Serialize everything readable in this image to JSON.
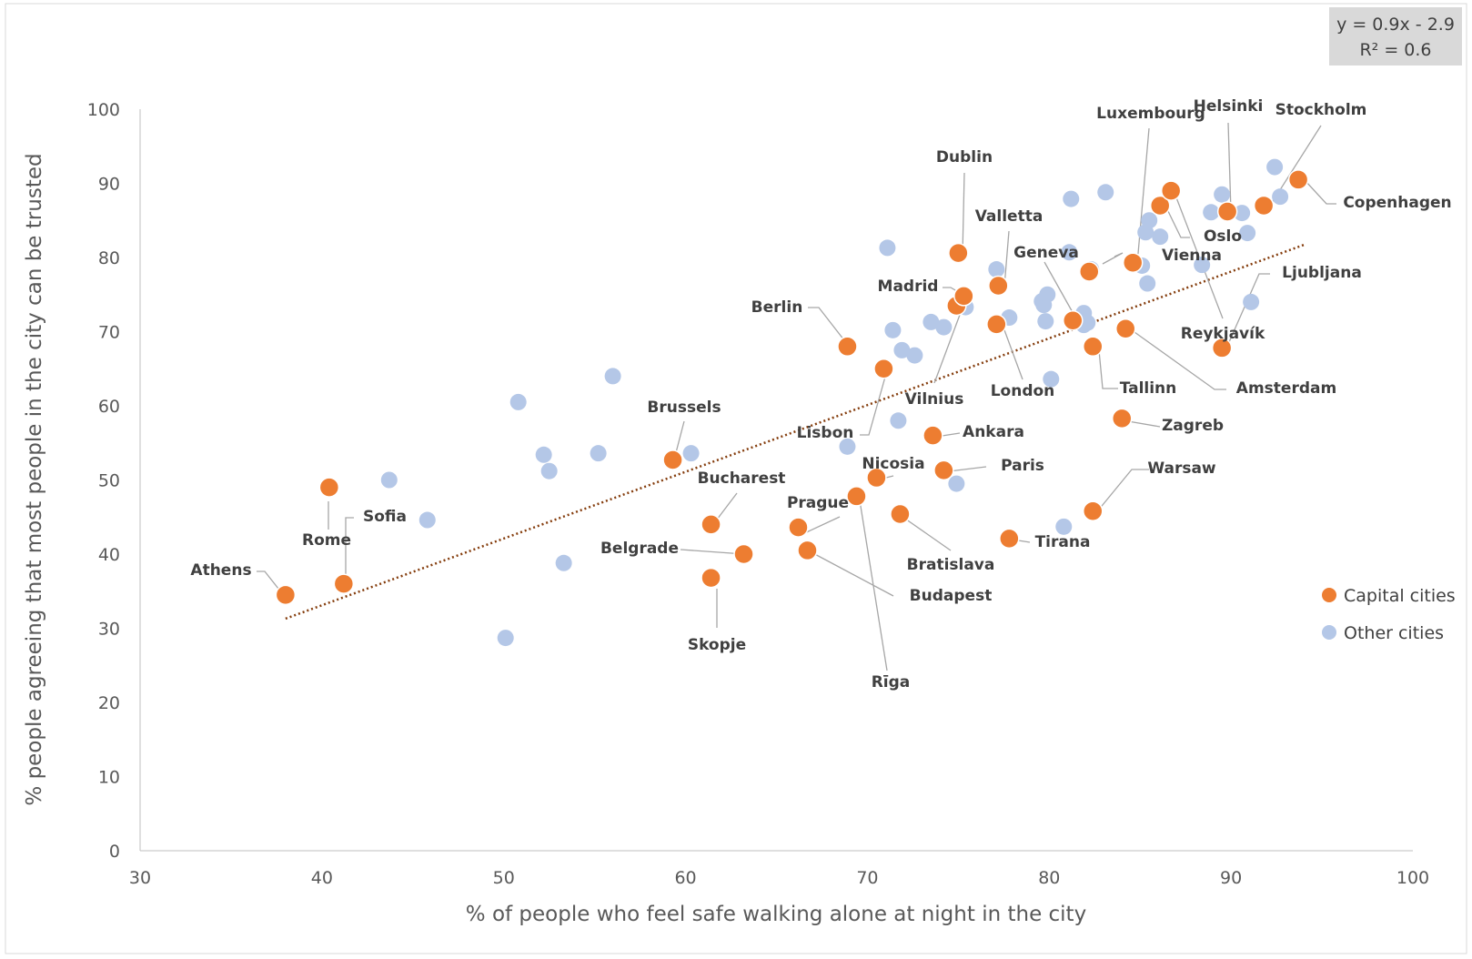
{
  "chart_data": {
    "type": "scatter",
    "xlabel": "% of people who feel safe walking alone at night in the city",
    "ylabel": "% people agreeing that most people in the city can be trusted",
    "xlim": [
      30,
      100
    ],
    "ylim": [
      0,
      100
    ],
    "x_ticks": [
      30,
      40,
      50,
      60,
      70,
      80,
      90,
      100
    ],
    "y_ticks": [
      0,
      10,
      20,
      30,
      40,
      50,
      60,
      70,
      80,
      90,
      100
    ],
    "grid": false,
    "legend_position": "right",
    "trendline": {
      "equation": "y = 0.9x - 2.9",
      "r_squared": "R² = 0.6",
      "slope": 0.9,
      "intercept": -2.9,
      "x_range": [
        38,
        94
      ],
      "color": "#843c0c"
    },
    "series": [
      {
        "name": "Capital cities",
        "color": "#ed7d31",
        "points": [
          {
            "label": "Athens",
            "x": 38,
            "y": 34.5
          },
          {
            "label": "Sofia",
            "x": 41.2,
            "y": 36
          },
          {
            "label": "Rome",
            "x": 40.4,
            "y": 49
          },
          {
            "label": "Brussels",
            "x": 59.3,
            "y": 52.7
          },
          {
            "label": "Bucharest",
            "x": 61.4,
            "y": 44
          },
          {
            "label": "Skopje",
            "x": 61.4,
            "y": 36.8
          },
          {
            "label": "Belgrade",
            "x": 63.2,
            "y": 40
          },
          {
            "label": "Prague",
            "x": 66.2,
            "y": 43.6
          },
          {
            "label": "Budapest",
            "x": 66.7,
            "y": 40.5
          },
          {
            "label": "Berlin",
            "x": 68.9,
            "y": 68
          },
          {
            "label": "Rīga",
            "x": 69.4,
            "y": 47.8
          },
          {
            "label": "Nicosia",
            "x": 70.5,
            "y": 50.3
          },
          {
            "label": "Lisbon",
            "x": 70.9,
            "y": 65
          },
          {
            "label": "Bratislava",
            "x": 71.8,
            "y": 45.4
          },
          {
            "label": "Ankara",
            "x": 73.6,
            "y": 56
          },
          {
            "label": "Paris",
            "x": 74.2,
            "y": 51.3
          },
          {
            "label": "Dublin",
            "x": 75,
            "y": 80.6
          },
          {
            "label": "Vilnius",
            "x": 74.9,
            "y": 73.5
          },
          {
            "label": "Madrid",
            "x": 75.3,
            "y": 74.8
          },
          {
            "label": "Valletta",
            "x": 77.2,
            "y": 76.2
          },
          {
            "label": "London",
            "x": 77.1,
            "y": 71
          },
          {
            "label": "Tirana",
            "x": 77.8,
            "y": 42.1
          },
          {
            "label": "Geneva",
            "x": 81.3,
            "y": 71.5
          },
          {
            "label": "Tallinn",
            "x": 82.4,
            "y": 68
          },
          {
            "label": "Vienna",
            "x": 82.2,
            "y": 78.1
          },
          {
            "label": "Warsaw",
            "x": 82.4,
            "y": 45.8
          },
          {
            "label": "Zagreb",
            "x": 84,
            "y": 58.3
          },
          {
            "label": "Amsterdam",
            "x": 84.2,
            "y": 70.4
          },
          {
            "label": "Luxembourg",
            "x": 84.6,
            "y": 79.3
          },
          {
            "label": "Oslo",
            "x": 86.1,
            "y": 87
          },
          {
            "label": "Reykjavík",
            "x": 86.7,
            "y": 89
          },
          {
            "label": "Ljubljana",
            "x": 89.5,
            "y": 67.8
          },
          {
            "label": "Helsinki",
            "x": 89.8,
            "y": 86.2
          },
          {
            "label": "Stockholm",
            "x": 91.8,
            "y": 87
          },
          {
            "label": "Copenhagen",
            "x": 93.7,
            "y": 90.5
          }
        ]
      },
      {
        "name": "Other cities",
        "color": "#b4c7e7",
        "points": [
          {
            "x": 43.7,
            "y": 50
          },
          {
            "x": 45.8,
            "y": 44.6
          },
          {
            "x": 50.1,
            "y": 28.7
          },
          {
            "x": 50.8,
            "y": 60.5
          },
          {
            "x": 52.2,
            "y": 53.4
          },
          {
            "x": 52.5,
            "y": 51.2
          },
          {
            "x": 53.3,
            "y": 38.8
          },
          {
            "x": 55.2,
            "y": 53.6
          },
          {
            "x": 56,
            "y": 64
          },
          {
            "x": 60.3,
            "y": 53.6
          },
          {
            "x": 68.9,
            "y": 54.5
          },
          {
            "x": 71.1,
            "y": 81.3
          },
          {
            "x": 71.4,
            "y": 70.2
          },
          {
            "x": 71.7,
            "y": 58
          },
          {
            "x": 71.9,
            "y": 67.5
          },
          {
            "x": 72.6,
            "y": 66.8
          },
          {
            "x": 73.5,
            "y": 71.3
          },
          {
            "x": 74.2,
            "y": 70.6
          },
          {
            "x": 74.9,
            "y": 49.5
          },
          {
            "x": 75.4,
            "y": 73.3
          },
          {
            "x": 77.1,
            "y": 78.4
          },
          {
            "x": 77.8,
            "y": 71.9
          },
          {
            "x": 79.6,
            "y": 74.1
          },
          {
            "x": 79.7,
            "y": 73.6
          },
          {
            "x": 79.8,
            "y": 71.4
          },
          {
            "x": 79.9,
            "y": 75
          },
          {
            "x": 80.1,
            "y": 63.6
          },
          {
            "x": 80.8,
            "y": 43.7
          },
          {
            "x": 81.1,
            "y": 80.7
          },
          {
            "x": 81.2,
            "y": 87.9
          },
          {
            "x": 81.9,
            "y": 72.5
          },
          {
            "x": 81.9,
            "y": 70.9
          },
          {
            "x": 82.1,
            "y": 71.2
          },
          {
            "x": 82.3,
            "y": 78.4
          },
          {
            "x": 83.1,
            "y": 88.8
          },
          {
            "x": 85.1,
            "y": 78.9
          },
          {
            "x": 85.3,
            "y": 83.4
          },
          {
            "x": 85.4,
            "y": 76.5
          },
          {
            "x": 85.5,
            "y": 85
          },
          {
            "x": 86.1,
            "y": 82.8
          },
          {
            "x": 88.4,
            "y": 79
          },
          {
            "x": 88.9,
            "y": 86.1
          },
          {
            "x": 89.5,
            "y": 88.5
          },
          {
            "x": 90.6,
            "y": 86
          },
          {
            "x": 90.9,
            "y": 83.3
          },
          {
            "x": 91.1,
            "y": 74
          },
          {
            "x": 92.4,
            "y": 92.2
          },
          {
            "x": 92.7,
            "y": 88.2
          }
        ]
      }
    ]
  }
}
